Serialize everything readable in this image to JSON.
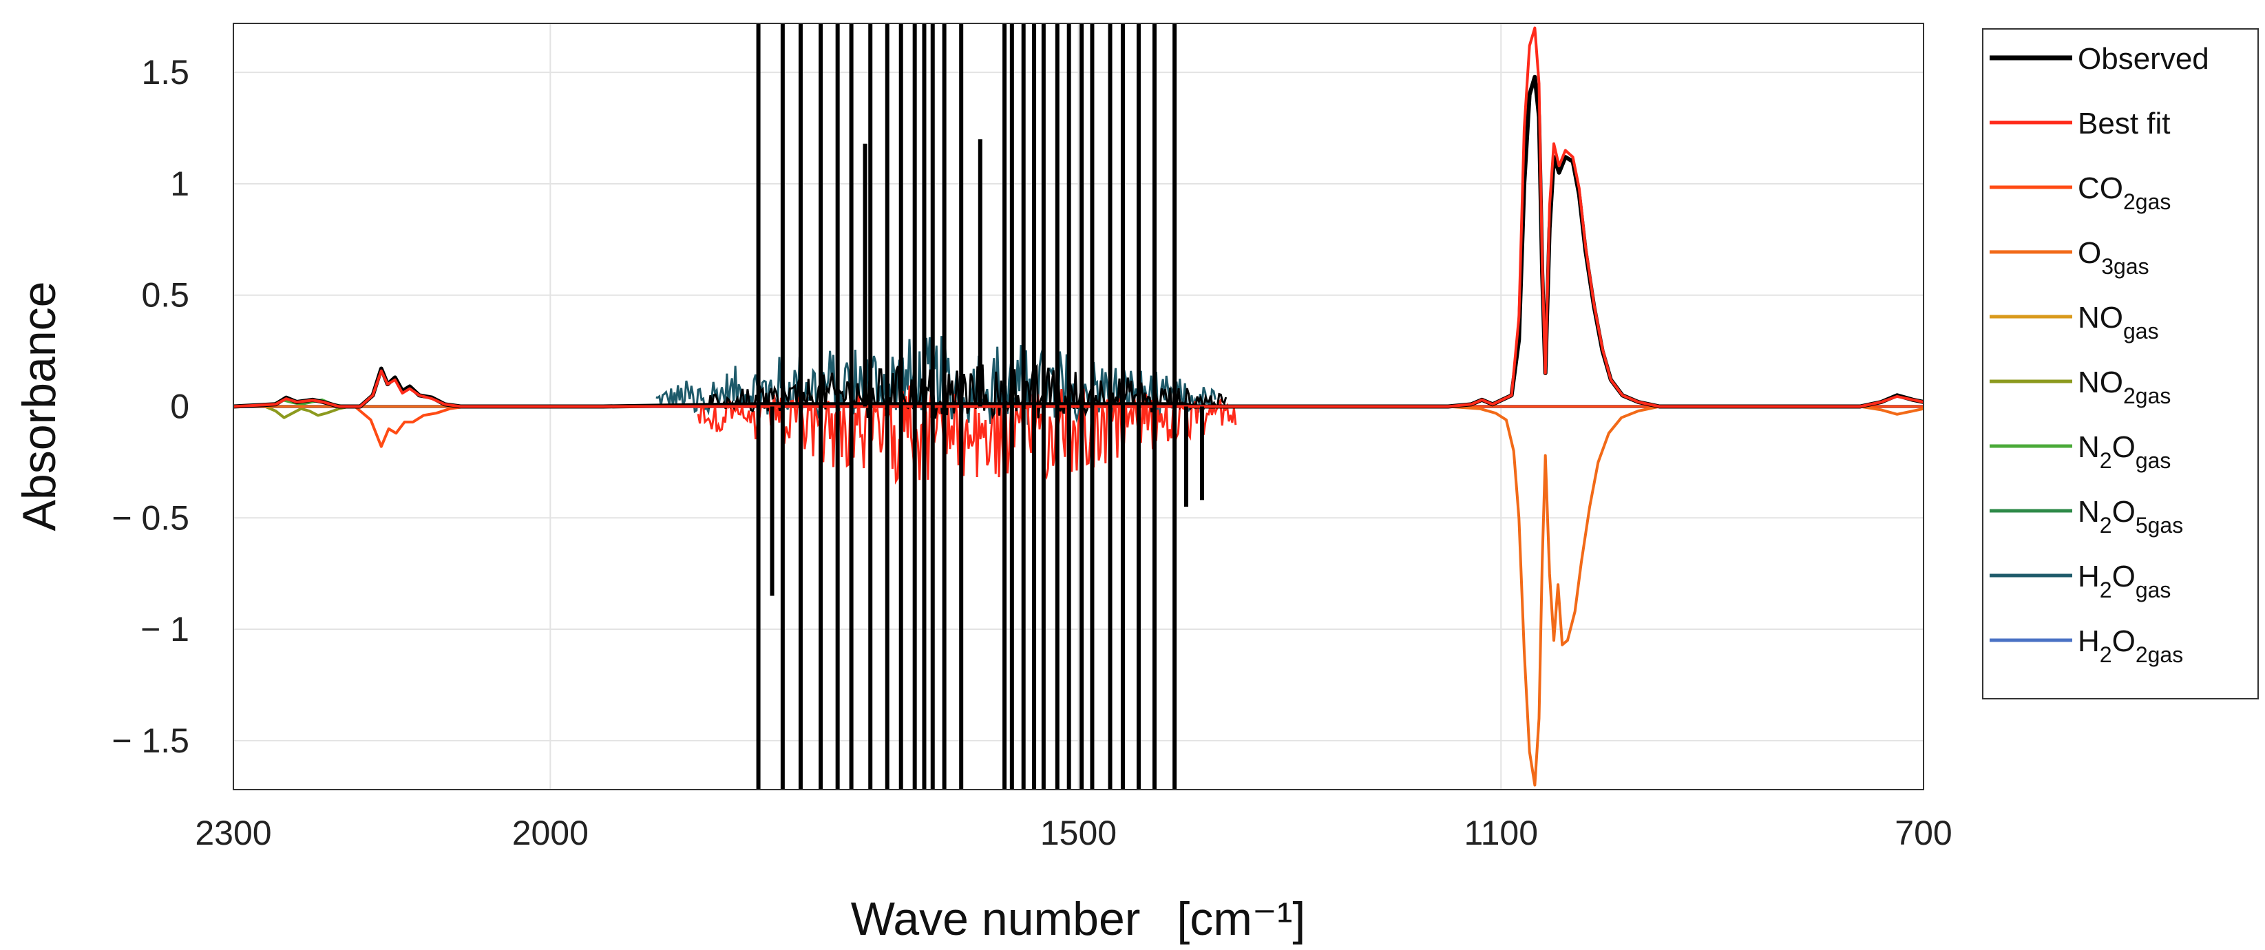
{
  "chart_data": {
    "type": "line",
    "title": "",
    "xlabel": "Wave number",
    "xlabel_unit": "[cm⁻¹]",
    "ylabel": "Absorbance",
    "x_reversed": true,
    "xlim": [
      2300,
      700
    ],
    "ylim": [
      -1.72,
      1.72
    ],
    "x_ticks": [
      2300,
      2000,
      1500,
      1100,
      700
    ],
    "x_tick_labels": [
      "2300",
      "2000",
      "1500",
      "1100",
      "700"
    ],
    "y_ticks": [
      1.5,
      1,
      0.5,
      0,
      -0.5,
      -1,
      -1.5
    ],
    "y_tick_labels": [
      "1.5",
      "1",
      "0.5",
      "0",
      "− 0.5",
      "− 1",
      "− 1.5"
    ],
    "grid": true,
    "legend_position": "outside-right",
    "legend": [
      {
        "id": "observed",
        "base": "Observed",
        "sub1": "",
        "mid": "",
        "sub2": "",
        "color": "#000000"
      },
      {
        "id": "best-fit",
        "base": "Best fit",
        "sub1": "",
        "mid": "",
        "sub2": "",
        "color": "#ff2a1a"
      },
      {
        "id": "co2-gas",
        "base": "CO",
        "sub1": "2gas",
        "mid": "",
        "sub2": "",
        "color": "#ff4b14"
      },
      {
        "id": "o3-gas",
        "base": "O",
        "sub1": "3gas",
        "mid": "",
        "sub2": "",
        "color": "#f26a18"
      },
      {
        "id": "no-gas",
        "base": "NO",
        "sub1": "gas",
        "mid": "",
        "sub2": "",
        "color": "#d99a1c"
      },
      {
        "id": "no2-gas",
        "base": "NO",
        "sub1": "2gas",
        "mid": "",
        "sub2": "",
        "color": "#8c9a1e"
      },
      {
        "id": "n2o-gas",
        "base": "N",
        "sub1": "2",
        "mid": "O",
        "sub2": "gas",
        "color": "#4aaa38"
      },
      {
        "id": "n2o5-gas",
        "base": "N",
        "sub1": "2",
        "mid": "O",
        "sub2": "5gas",
        "color": "#2e8a48"
      },
      {
        "id": "h2o-gas",
        "base": "H",
        "sub1": "2",
        "mid": "O",
        "sub2": "gas",
        "color": "#1e5a6a"
      },
      {
        "id": "h2o2-gas",
        "base": "H",
        "sub1": "2",
        "mid": "O",
        "sub2": "2gas",
        "color": "#4a72c4"
      }
    ],
    "series": [
      {
        "id": "observed",
        "kind": "line",
        "points": [
          [
            2300,
            0
          ],
          [
            2260,
            0.01
          ],
          [
            2250,
            0.04
          ],
          [
            2240,
            0.02
          ],
          [
            2225,
            0.03
          ],
          [
            2215,
            0.02
          ],
          [
            2200,
            0
          ],
          [
            2180,
            0
          ],
          [
            2168,
            0.05
          ],
          [
            2160,
            0.17
          ],
          [
            2154,
            0.1
          ],
          [
            2147,
            0.13
          ],
          [
            2140,
            0.07
          ],
          [
            2133,
            0.09
          ],
          [
            2124,
            0.05
          ],
          [
            2112,
            0.04
          ],
          [
            2100,
            0.01
          ],
          [
            2085,
            0
          ],
          [
            1950,
            0
          ],
          [
            1800,
            0.01
          ],
          [
            1400,
            0.01
          ],
          [
            1390,
            0
          ],
          [
            1150,
            0
          ],
          [
            1128,
            0.01
          ],
          [
            1118,
            0.03
          ],
          [
            1108,
            0.01
          ],
          [
            1090,
            0.05
          ],
          [
            1083,
            0.3
          ],
          [
            1078,
            1.0
          ],
          [
            1073,
            1.4
          ],
          [
            1068,
            1.48
          ],
          [
            1064,
            1.3
          ],
          [
            1061,
            0.6
          ],
          [
            1058,
            0.15
          ],
          [
            1054,
            0.8
          ],
          [
            1050,
            1.12
          ],
          [
            1045,
            1.05
          ],
          [
            1039,
            1.12
          ],
          [
            1032,
            1.1
          ],
          [
            1026,
            0.95
          ],
          [
            1020,
            0.7
          ],
          [
            1012,
            0.45
          ],
          [
            1004,
            0.25
          ],
          [
            996,
            0.12
          ],
          [
            985,
            0.05
          ],
          [
            970,
            0.02
          ],
          [
            950,
            0
          ],
          [
            760,
            0
          ],
          [
            740,
            0.02
          ],
          [
            725,
            0.05
          ],
          [
            710,
            0.03
          ],
          [
            700,
            0.02
          ]
        ]
      },
      {
        "id": "best-fit",
        "kind": "line",
        "points": [
          [
            2300,
            0
          ],
          [
            2260,
            0.01
          ],
          [
            2250,
            0.035
          ],
          [
            2240,
            0.02
          ],
          [
            2225,
            0.028
          ],
          [
            2215,
            0.02
          ],
          [
            2200,
            0
          ],
          [
            2180,
            0
          ],
          [
            2168,
            0.05
          ],
          [
            2160,
            0.16
          ],
          [
            2154,
            0.1
          ],
          [
            2147,
            0.12
          ],
          [
            2140,
            0.06
          ],
          [
            2133,
            0.08
          ],
          [
            2124,
            0.05
          ],
          [
            2112,
            0.035
          ],
          [
            2100,
            0.01
          ],
          [
            2085,
            0
          ],
          [
            1950,
            0
          ],
          [
            1800,
            0
          ],
          [
            1150,
            0
          ],
          [
            1128,
            0.01
          ],
          [
            1118,
            0.03
          ],
          [
            1108,
            0.01
          ],
          [
            1090,
            0.05
          ],
          [
            1083,
            0.4
          ],
          [
            1078,
            1.25
          ],
          [
            1073,
            1.62
          ],
          [
            1068,
            1.7
          ],
          [
            1064,
            1.45
          ],
          [
            1061,
            0.65
          ],
          [
            1058,
            0.15
          ],
          [
            1054,
            0.9
          ],
          [
            1050,
            1.18
          ],
          [
            1045,
            1.08
          ],
          [
            1039,
            1.15
          ],
          [
            1032,
            1.12
          ],
          [
            1026,
            0.98
          ],
          [
            1020,
            0.72
          ],
          [
            1012,
            0.46
          ],
          [
            1004,
            0.26
          ],
          [
            996,
            0.12
          ],
          [
            985,
            0.05
          ],
          [
            970,
            0.02
          ],
          [
            950,
            0
          ],
          [
            760,
            0
          ],
          [
            740,
            0.02
          ],
          [
            725,
            0.045
          ],
          [
            710,
            0.03
          ],
          [
            700,
            0.02
          ]
        ]
      },
      {
        "id": "o3-gas",
        "kind": "line",
        "points": [
          [
            2300,
            0
          ],
          [
            2200,
            0
          ],
          [
            1150,
            0
          ],
          [
            1120,
            -0.01
          ],
          [
            1105,
            -0.03
          ],
          [
            1095,
            -0.06
          ],
          [
            1088,
            -0.2
          ],
          [
            1083,
            -0.5
          ],
          [
            1078,
            -1.1
          ],
          [
            1073,
            -1.55
          ],
          [
            1068,
            -1.7
          ],
          [
            1064,
            -1.4
          ],
          [
            1061,
            -0.7
          ],
          [
            1058,
            -0.22
          ],
          [
            1054,
            -0.75
          ],
          [
            1050,
            -1.05
          ],
          [
            1046,
            -0.8
          ],
          [
            1042,
            -1.07
          ],
          [
            1037,
            -1.05
          ],
          [
            1030,
            -0.92
          ],
          [
            1024,
            -0.7
          ],
          [
            1016,
            -0.45
          ],
          [
            1008,
            -0.25
          ],
          [
            998,
            -0.12
          ],
          [
            986,
            -0.05
          ],
          [
            970,
            -0.02
          ],
          [
            950,
            0
          ],
          [
            760,
            0
          ],
          [
            740,
            -0.015
          ],
          [
            725,
            -0.035
          ],
          [
            710,
            -0.02
          ],
          [
            700,
            -0.01
          ]
        ]
      },
      {
        "id": "co2-gas",
        "kind": "line",
        "points": [
          [
            2300,
            0
          ],
          [
            2200,
            0
          ],
          [
            2185,
            0
          ],
          [
            2170,
            -0.06
          ],
          [
            2160,
            -0.18
          ],
          [
            2153,
            -0.1
          ],
          [
            2146,
            -0.12
          ],
          [
            2138,
            -0.07
          ],
          [
            2130,
            -0.07
          ],
          [
            2120,
            -0.04
          ],
          [
            2108,
            -0.03
          ],
          [
            2095,
            -0.01
          ],
          [
            2080,
            0
          ],
          [
            700,
            0
          ]
        ]
      },
      {
        "id": "no2-gas",
        "kind": "line",
        "points": [
          [
            2300,
            0
          ],
          [
            2270,
            0
          ],
          [
            2260,
            -0.02
          ],
          [
            2252,
            -0.05
          ],
          [
            2244,
            -0.03
          ],
          [
            2236,
            -0.01
          ],
          [
            2228,
            -0.02
          ],
          [
            2220,
            -0.04
          ],
          [
            2212,
            -0.03
          ],
          [
            2200,
            -0.01
          ],
          [
            2190,
            0
          ],
          [
            700,
            0
          ]
        ]
      },
      {
        "id": "n2o-gas",
        "kind": "line",
        "points": [
          [
            2300,
            0
          ],
          [
            2270,
            0
          ],
          [
            2262,
            0.01
          ],
          [
            2254,
            0.03
          ],
          [
            2246,
            0.02
          ],
          [
            2236,
            0.01
          ],
          [
            2226,
            0.02
          ],
          [
            2216,
            0.03
          ],
          [
            2206,
            0.01
          ],
          [
            2195,
            0
          ],
          [
            700,
            0
          ]
        ]
      },
      {
        "id": "h2o2-gas",
        "kind": "line",
        "points": [
          [
            2300,
            0
          ],
          [
            700,
            0
          ]
        ]
      }
    ],
    "noise_bands": [
      {
        "id": "h2o-gas",
        "from": 1900,
        "to": 1370,
        "max": 0.32
      },
      {
        "id": "best-fit",
        "from": 1860,
        "to": 1350,
        "max": -0.36
      },
      {
        "id": "observed",
        "from": 1850,
        "to": 1360,
        "max": 0.2
      }
    ],
    "observed_spikes": [
      [
        1803,
        1.8,
        -1.8
      ],
      [
        1790,
        -0.85,
        -0.85
      ],
      [
        1780,
        1.8,
        -1.8
      ],
      [
        1763,
        1.8,
        -1.8
      ],
      [
        1744,
        1.8,
        -1.8
      ],
      [
        1728,
        1.8,
        -1.8
      ],
      [
        1715,
        1.8,
        -1.8
      ],
      [
        1702,
        1.18,
        1.18
      ],
      [
        1697,
        1.8,
        -1.8
      ],
      [
        1681,
        1.8,
        -1.8
      ],
      [
        1668,
        1.8,
        -1.8
      ],
      [
        1655,
        1.8,
        -1.8
      ],
      [
        1646,
        1.8,
        -1.8
      ],
      [
        1638,
        1.8,
        -1.8
      ],
      [
        1627,
        1.8,
        -1.8
      ],
      [
        1611,
        1.8,
        -1.8
      ],
      [
        1593,
        1.2,
        1.2
      ],
      [
        1570,
        1.8,
        -1.8
      ],
      [
        1563,
        1.8,
        -1.8
      ],
      [
        1552,
        1.8,
        -1.8
      ],
      [
        1542,
        1.8,
        -1.8
      ],
      [
        1533,
        1.8,
        -1.8
      ],
      [
        1520,
        1.8,
        -1.8
      ],
      [
        1509,
        1.8,
        -1.8
      ],
      [
        1497,
        1.8,
        -1.8
      ],
      [
        1487,
        1.8,
        -1.8
      ],
      [
        1470,
        1.8,
        -1.8
      ],
      [
        1458,
        1.8,
        -1.8
      ],
      [
        1443,
        1.8,
        -1.8
      ],
      [
        1428,
        1.8,
        -1.8
      ],
      [
        1409,
        1.8,
        -1.8
      ],
      [
        1398,
        -0.45,
        -0.45
      ],
      [
        1383,
        -0.42,
        -0.42
      ]
    ]
  }
}
